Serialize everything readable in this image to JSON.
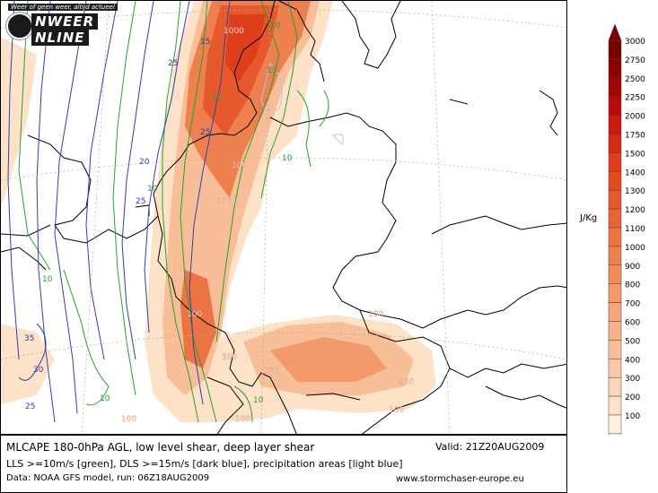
{
  "logo": {
    "tagline": "Weer of geen weer, altijd actueel",
    "word1": "NWEER",
    "word2": "NLINE"
  },
  "legend": {
    "unit": "J/Kg",
    "levels": [
      3000,
      2750,
      2500,
      2250,
      2000,
      1750,
      1500,
      1400,
      1300,
      1200,
      1100,
      1000,
      900,
      800,
      700,
      600,
      500,
      400,
      300,
      200,
      100
    ],
    "colors": [
      "#7a0000",
      "#8e0000",
      "#a30404",
      "#b80c0c",
      "#cc1a10",
      "#d62a14",
      "#e03d1a",
      "#e24a22",
      "#e6592c",
      "#e86636",
      "#ec7442",
      "#ee8050",
      "#f08c5c",
      "#f29a6c",
      "#f4a67a",
      "#f6b28a",
      "#f8be98",
      "#facaa8",
      "#fbd6b8",
      "#fde2c8",
      "#fef0e0"
    ]
  },
  "map_labels": {
    "cape": [
      {
        "text": "1000"
      },
      {
        "text": "100"
      },
      {
        "text": "100"
      },
      {
        "text": "100"
      },
      {
        "text": "500"
      },
      {
        "text": "100"
      },
      {
        "text": "100"
      },
      {
        "text": "500"
      },
      {
        "text": "100"
      },
      {
        "text": "100"
      },
      {
        "text": "100"
      }
    ],
    "green": [
      {
        "text": "10"
      },
      {
        "text": "15"
      },
      {
        "text": "15"
      },
      {
        "text": "10"
      },
      {
        "text": "10"
      },
      {
        "text": "10"
      },
      {
        "text": "10"
      },
      {
        "text": "10"
      }
    ],
    "blue": [
      {
        "text": "25"
      },
      {
        "text": "25"
      },
      {
        "text": "20"
      },
      {
        "text": "25"
      },
      {
        "text": "35"
      },
      {
        "text": "30"
      },
      {
        "text": "25"
      },
      {
        "text": "15"
      }
    ],
    "colors": {
      "green": "#2aa02a",
      "blue": "#3040b0",
      "precip": "#a8c8f0",
      "cape_text": "#ffffff"
    }
  },
  "caption": {
    "line1": "MLCAPE 180-0hPa AGL, low level shear, deep layer shear",
    "line2": "LLS >=10m/s [green], DLS >=15m/s [dark blue], precipitation areas [light blue]",
    "line3": "Data: NOAA GFS model, run: 06Z18AUG2009",
    "valid": "Valid: 21Z20AUG2009",
    "url": "www.stormchaser-europe.eu"
  }
}
